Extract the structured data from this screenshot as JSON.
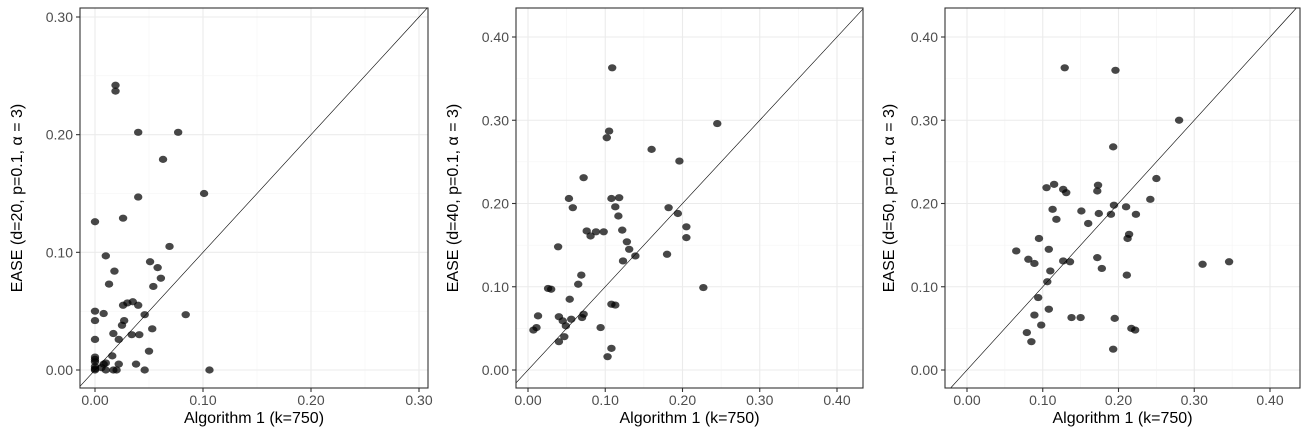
{
  "chart_data": [
    {
      "type": "scatter",
      "xlabel": "Algorithm 1 (k=750)",
      "ylabel": "EASE (d=20, p=0.1, α = 3)",
      "xlim": [
        0,
        0.3
      ],
      "ylim": [
        0,
        0.3
      ],
      "xticks": [
        "0.00",
        "0.10",
        "0.20",
        "0.30"
      ],
      "yticks": [
        "0.00",
        "0.10",
        "0.20",
        "0.30"
      ],
      "grid": true,
      "reference_line": "y = x",
      "points": [
        [
          0.019,
          0.242
        ],
        [
          0.019,
          0.237
        ],
        [
          0.04,
          0.202
        ],
        [
          0.077,
          0.202
        ],
        [
          0.063,
          0.179
        ],
        [
          0.101,
          0.15
        ],
        [
          0.04,
          0.147
        ],
        [
          0.026,
          0.129
        ],
        [
          0.0,
          0.126
        ],
        [
          0.069,
          0.105
        ],
        [
          0.01,
          0.097
        ],
        [
          0.051,
          0.092
        ],
        [
          0.058,
          0.087
        ],
        [
          0.018,
          0.084
        ],
        [
          0.061,
          0.078
        ],
        [
          0.013,
          0.073
        ],
        [
          0.054,
          0.071
        ],
        [
          0.035,
          0.058
        ],
        [
          0.03,
          0.057
        ],
        [
          0.04,
          0.055
        ],
        [
          0.026,
          0.055
        ],
        [
          0.008,
          0.048
        ],
        [
          0.0,
          0.05
        ],
        [
          0.084,
          0.047
        ],
        [
          0.046,
          0.047
        ],
        [
          0.027,
          0.042
        ],
        [
          0.025,
          0.038
        ],
        [
          0.0,
          0.042
        ],
        [
          0.053,
          0.035
        ],
        [
          0.017,
          0.031
        ],
        [
          0.041,
          0.03
        ],
        [
          0.034,
          0.03
        ],
        [
          0.022,
          0.026
        ],
        [
          0.0,
          0.026
        ],
        [
          0.05,
          0.016
        ],
        [
          0.016,
          0.012
        ],
        [
          0.0,
          0.011
        ],
        [
          0.0,
          0.009
        ],
        [
          0.0,
          0.007
        ],
        [
          0.01,
          0.006
        ],
        [
          0.038,
          0.005
        ],
        [
          0.022,
          0.005
        ],
        [
          0.008,
          0.005
        ],
        [
          0.0,
          0.003
        ],
        [
          0.006,
          0.002
        ],
        [
          0.0,
          0.001
        ],
        [
          0.017,
          0.0
        ],
        [
          0.02,
          0.0
        ],
        [
          0.046,
          0.0
        ],
        [
          0.106,
          0.0
        ],
        [
          0.0,
          0.0
        ],
        [
          0.01,
          0.0
        ]
      ]
    },
    {
      "type": "scatter",
      "xlabel": "Algorithm 1 (k=750)",
      "ylabel": "EASE (d=40, p=0.1, α = 3)",
      "xlim": [
        0,
        0.43
      ],
      "ylim": [
        0,
        0.43
      ],
      "xticks": [
        "0.00",
        "0.10",
        "0.20",
        "0.30",
        "0.40"
      ],
      "yticks": [
        "0.00",
        "0.10",
        "0.20",
        "0.30",
        "0.40"
      ],
      "grid": true,
      "reference_line": "y = x",
      "points": [
        [
          0.109,
          0.363
        ],
        [
          0.245,
          0.296
        ],
        [
          0.105,
          0.287
        ],
        [
          0.102,
          0.279
        ],
        [
          0.16,
          0.265
        ],
        [
          0.196,
          0.251
        ],
        [
          0.072,
          0.231
        ],
        [
          0.053,
          0.206
        ],
        [
          0.108,
          0.206
        ],
        [
          0.118,
          0.207
        ],
        [
          0.058,
          0.195
        ],
        [
          0.182,
          0.195
        ],
        [
          0.113,
          0.196
        ],
        [
          0.194,
          0.188
        ],
        [
          0.117,
          0.185
        ],
        [
          0.205,
          0.172
        ],
        [
          0.122,
          0.168
        ],
        [
          0.088,
          0.166
        ],
        [
          0.076,
          0.167
        ],
        [
          0.098,
          0.166
        ],
        [
          0.081,
          0.161
        ],
        [
          0.205,
          0.159
        ],
        [
          0.128,
          0.154
        ],
        [
          0.039,
          0.148
        ],
        [
          0.131,
          0.145
        ],
        [
          0.139,
          0.137
        ],
        [
          0.18,
          0.139
        ],
        [
          0.123,
          0.131
        ],
        [
          0.069,
          0.114
        ],
        [
          0.065,
          0.103
        ],
        [
          0.026,
          0.098
        ],
        [
          0.03,
          0.097
        ],
        [
          0.227,
          0.099
        ],
        [
          0.054,
          0.085
        ],
        [
          0.108,
          0.079
        ],
        [
          0.113,
          0.078
        ],
        [
          0.072,
          0.067
        ],
        [
          0.04,
          0.064
        ],
        [
          0.013,
          0.065
        ],
        [
          0.07,
          0.063
        ],
        [
          0.056,
          0.061
        ],
        [
          0.045,
          0.059
        ],
        [
          0.049,
          0.053
        ],
        [
          0.011,
          0.051
        ],
        [
          0.094,
          0.051
        ],
        [
          0.047,
          0.04
        ],
        [
          0.04,
          0.034
        ],
        [
          0.108,
          0.026
        ],
        [
          0.103,
          0.016
        ],
        [
          0.007,
          0.048
        ]
      ]
    },
    {
      "type": "scatter",
      "xlabel": "Algorithm 1 (k=750)",
      "ylabel": "EASE (d=50, p=0.1, α = 3)",
      "xlim": [
        0,
        0.43
      ],
      "ylim": [
        0,
        0.43
      ],
      "xticks": [
        "0.00",
        "0.10",
        "0.20",
        "0.30",
        "0.40"
      ],
      "yticks": [
        "0.00",
        "0.10",
        "0.20",
        "0.30",
        "0.40"
      ],
      "grid": true,
      "reference_line": "y = x",
      "points": [
        [
          0.129,
          0.363
        ],
        [
          0.196,
          0.36
        ],
        [
          0.28,
          0.3
        ],
        [
          0.193,
          0.268
        ],
        [
          0.25,
          0.23
        ],
        [
          0.115,
          0.223
        ],
        [
          0.173,
          0.222
        ],
        [
          0.105,
          0.219
        ],
        [
          0.127,
          0.217
        ],
        [
          0.131,
          0.213
        ],
        [
          0.172,
          0.215
        ],
        [
          0.242,
          0.205
        ],
        [
          0.194,
          0.198
        ],
        [
          0.21,
          0.196
        ],
        [
          0.113,
          0.193
        ],
        [
          0.151,
          0.191
        ],
        [
          0.223,
          0.187
        ],
        [
          0.19,
          0.187
        ],
        [
          0.174,
          0.188
        ],
        [
          0.118,
          0.181
        ],
        [
          0.16,
          0.176
        ],
        [
          0.214,
          0.163
        ],
        [
          0.212,
          0.158
        ],
        [
          0.095,
          0.158
        ],
        [
          0.108,
          0.145
        ],
        [
          0.065,
          0.143
        ],
        [
          0.172,
          0.135
        ],
        [
          0.081,
          0.133
        ],
        [
          0.127,
          0.131
        ],
        [
          0.136,
          0.13
        ],
        [
          0.089,
          0.128
        ],
        [
          0.346,
          0.13
        ],
        [
          0.311,
          0.127
        ],
        [
          0.178,
          0.122
        ],
        [
          0.11,
          0.119
        ],
        [
          0.211,
          0.114
        ],
        [
          0.106,
          0.106
        ],
        [
          0.094,
          0.087
        ],
        [
          0.108,
          0.073
        ],
        [
          0.15,
          0.063
        ],
        [
          0.138,
          0.063
        ],
        [
          0.089,
          0.066
        ],
        [
          0.195,
          0.062
        ],
        [
          0.098,
          0.054
        ],
        [
          0.217,
          0.05
        ],
        [
          0.222,
          0.048
        ],
        [
          0.079,
          0.045
        ],
        [
          0.085,
          0.034
        ],
        [
          0.193,
          0.025
        ]
      ]
    }
  ]
}
